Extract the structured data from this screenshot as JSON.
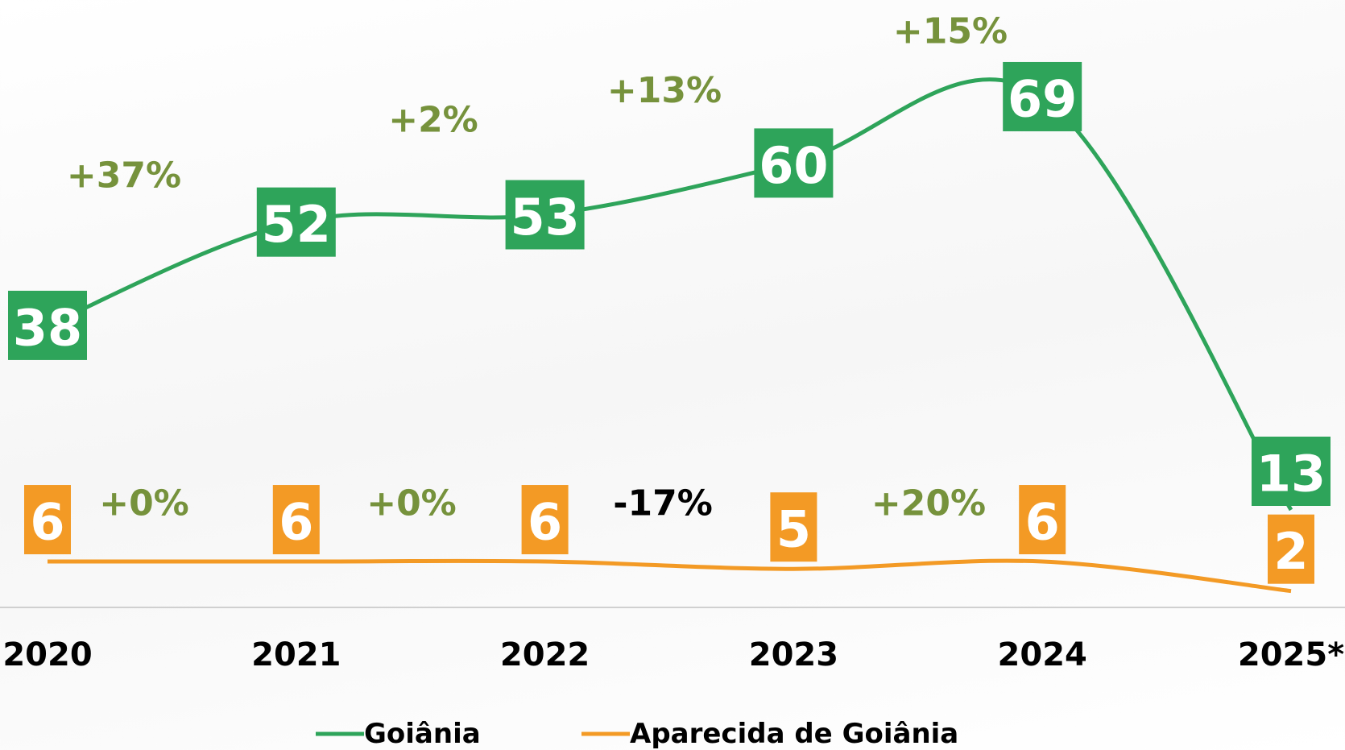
{
  "chart_data": {
    "type": "line",
    "categories": [
      "2020",
      "2021",
      "2022",
      "2023",
      "2024",
      "2025*"
    ],
    "series": [
      {
        "name": "Goiânia",
        "color": "#2ea45a",
        "values": [
          38,
          52,
          53,
          60,
          69,
          13
        ],
        "growth_labels": [
          "+37%",
          "+2%",
          "+13%",
          "+15%"
        ],
        "growth_colors": [
          "#76923c",
          "#76923c",
          "#76923c",
          "#76923c"
        ]
      },
      {
        "name": "Aparecida de Goiânia",
        "color": "#f39a25",
        "values": [
          6,
          6,
          6,
          5,
          6,
          2
        ],
        "growth_labels": [
          "+0%",
          "+0%",
          "-17%",
          "+20%"
        ],
        "growth_colors": [
          "#76923c",
          "#76923c",
          "#000000",
          "#76923c"
        ]
      }
    ],
    "legend": "bottom"
  }
}
